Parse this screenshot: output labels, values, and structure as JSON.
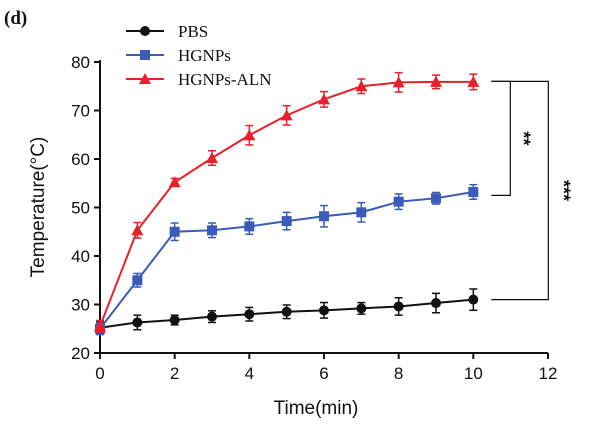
{
  "chart_data": {
    "type": "line",
    "panel_label": "(d)",
    "xlabel": "Time(min)",
    "ylabel": "Temperature(°C)",
    "xlim": [
      0,
      12
    ],
    "ylim": [
      20,
      80
    ],
    "xticks": [
      0,
      2,
      4,
      6,
      8,
      10,
      12
    ],
    "yticks": [
      20,
      30,
      40,
      50,
      60,
      70,
      80
    ],
    "grid": false,
    "legend_position": "top-left",
    "x": [
      0,
      1,
      2,
      3,
      4,
      5,
      6,
      7,
      8,
      9,
      10
    ],
    "series": [
      {
        "name": "PBS",
        "color": "#111111",
        "marker": "circle",
        "values": [
          25.2,
          26.3,
          26.8,
          27.5,
          28.0,
          28.5,
          28.8,
          29.2,
          29.6,
          30.3,
          31.0
        ],
        "errors": [
          1.2,
          1.5,
          1.0,
          1.2,
          1.4,
          1.4,
          1.6,
          1.2,
          1.8,
          2.0,
          2.2
        ]
      },
      {
        "name": "HGNPs",
        "color": "#3a5bb8",
        "marker": "square",
        "values": [
          25.0,
          35.0,
          45.0,
          45.3,
          46.1,
          47.2,
          48.2,
          49.0,
          51.2,
          51.9,
          53.2
        ],
        "errors": [
          1.2,
          1.4,
          1.8,
          1.5,
          1.6,
          1.8,
          2.2,
          2.0,
          1.6,
          1.2,
          1.5
        ]
      },
      {
        "name": "HGNPs-ALN",
        "color": "#e8202a",
        "marker": "triangle",
        "values": [
          25.5,
          45.3,
          55.2,
          60.2,
          64.9,
          69.0,
          72.3,
          75.0,
          75.8,
          75.9,
          75.9
        ],
        "errors": [
          1.2,
          1.6,
          0.8,
          1.5,
          2.0,
          2.0,
          1.6,
          1.5,
          2.0,
          1.4,
          1.6
        ]
      }
    ],
    "annotations": [
      {
        "text": "**",
        "between": [
          "HGNPs-ALN",
          "HGNPs"
        ],
        "y_top": 76,
        "y_bottom": 52.5
      },
      {
        "text": "***",
        "between": [
          "HGNPs-ALN",
          "PBS"
        ],
        "y_top": 76,
        "y_bottom": 31
      }
    ]
  }
}
